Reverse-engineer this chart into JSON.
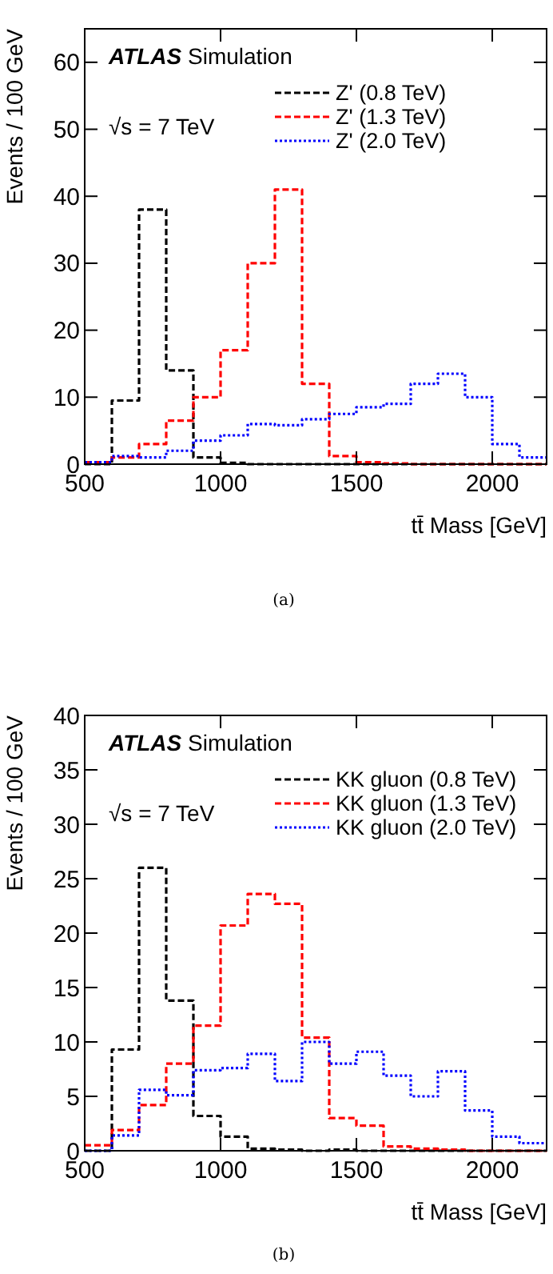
{
  "chart_data": [
    {
      "type": "histogram",
      "xlabel": "tt̄ Mass [GeV]",
      "ylabel": "Events / 100 GeV",
      "annotations": [
        "ATLAS Simulation",
        "√s = 7 TeV",
        "(a)"
      ],
      "bins": [
        500,
        600,
        700,
        800,
        900,
        1000,
        1100,
        1200,
        1300,
        1400,
        1500,
        1600,
        1700,
        1800,
        1900,
        2000,
        2100,
        2200
      ],
      "xlim": [
        500,
        2200
      ],
      "xticks": [
        500,
        1000,
        1500,
        2000
      ],
      "ylim": [
        0,
        65
      ],
      "yticks": [
        0,
        10,
        20,
        30,
        40,
        50,
        60
      ],
      "legend": "top right",
      "grid": false,
      "series": [
        {
          "name": "Z' (0.8 TeV)",
          "color": "#000000",
          "line_style": "dashed",
          "values": [
            0,
            9.5,
            38,
            14,
            1,
            0.2,
            0,
            0,
            0,
            0,
            0,
            0,
            0,
            0,
            0,
            0,
            0
          ]
        },
        {
          "name": "Z' (1.3 TeV)",
          "color": "#ff0000",
          "line_style": "dashed",
          "values": [
            0.3,
            1,
            3,
            6.5,
            10,
            17,
            30,
            41,
            12,
            1.2,
            0.3,
            0.1,
            0,
            0,
            0,
            0,
            0
          ]
        },
        {
          "name": "Z' (2.0 TeV)",
          "color": "#0000ff",
          "line_style": "dotted",
          "values": [
            0.3,
            1.2,
            1,
            2,
            3.5,
            4.3,
            6,
            5.8,
            6.7,
            7.5,
            8.5,
            9,
            12,
            13.5,
            10,
            3,
            1
          ]
        }
      ]
    },
    {
      "type": "histogram",
      "xlabel": "tt̄ Mass [GeV]",
      "ylabel": "Events / 100 GeV",
      "annotations": [
        "ATLAS Simulation",
        "√s = 7 TeV",
        "(b)"
      ],
      "bins": [
        500,
        600,
        700,
        800,
        900,
        1000,
        1100,
        1200,
        1300,
        1400,
        1500,
        1600,
        1700,
        1800,
        1900,
        2000,
        2100,
        2200
      ],
      "xlim": [
        500,
        2200
      ],
      "xticks": [
        500,
        1000,
        1500,
        2000
      ],
      "ylim": [
        0,
        40
      ],
      "yticks": [
        0,
        5,
        10,
        15,
        20,
        25,
        30,
        35,
        40
      ],
      "legend": "top right",
      "grid": false,
      "series": [
        {
          "name": "KK gluon (0.8 TeV)",
          "color": "#000000",
          "line_style": "dashed",
          "values": [
            0,
            9.3,
            26,
            13.8,
            3.2,
            1.3,
            0.2,
            0.1,
            0,
            0.1,
            0,
            0,
            0,
            0,
            0,
            0,
            0
          ]
        },
        {
          "name": "KK gluon (1.3 TeV)",
          "color": "#ff0000",
          "line_style": "dashed",
          "values": [
            0.5,
            1.9,
            4.2,
            8,
            11.5,
            20.7,
            23.6,
            22.7,
            10.4,
            3,
            2.3,
            0.4,
            0.2,
            0.1,
            0,
            0,
            0
          ]
        },
        {
          "name": "KK gluon (2.0 TeV)",
          "color": "#0000ff",
          "line_style": "dotted",
          "values": [
            0,
            1.4,
            5.6,
            5.1,
            7.4,
            7.6,
            8.9,
            6.4,
            10,
            8,
            9.1,
            6.9,
            5,
            7.3,
            3.7,
            1.3,
            0.7
          ]
        }
      ]
    }
  ]
}
